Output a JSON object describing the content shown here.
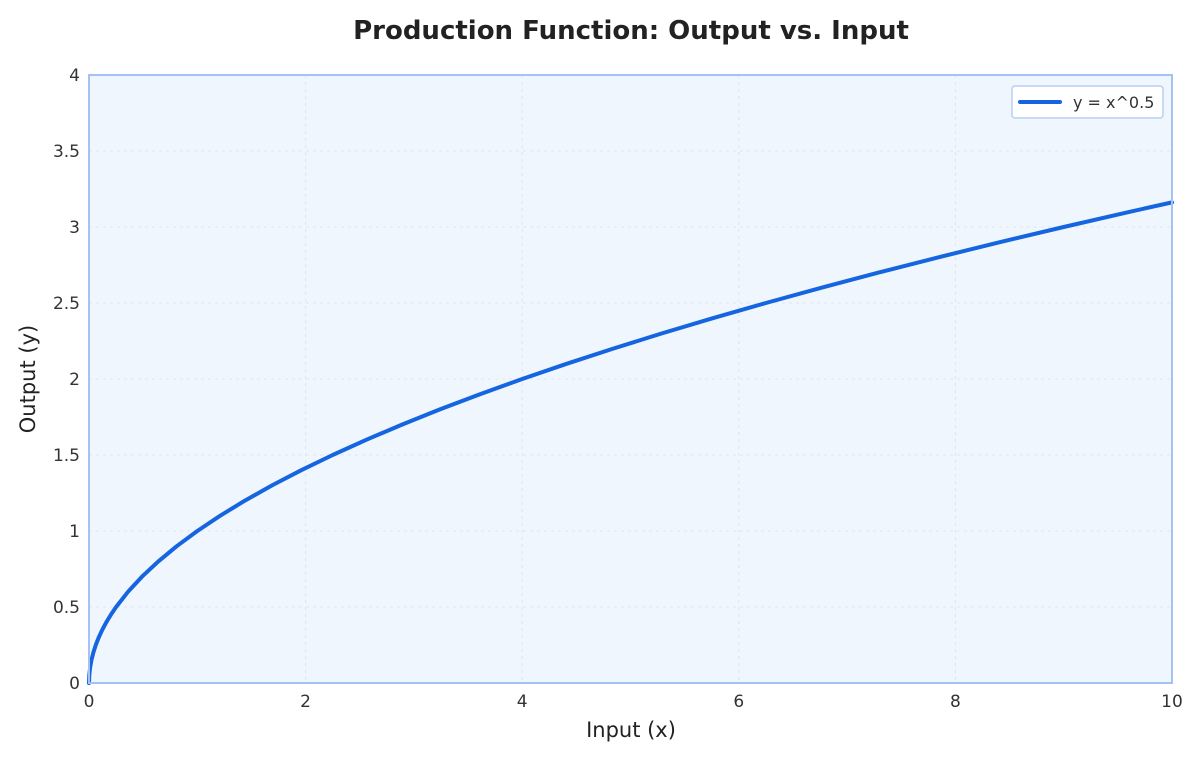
{
  "chart_data": {
    "type": "line",
    "title": "Production Function: Output vs. Input",
    "xlabel": "Input (x)",
    "ylabel": "Output (y)",
    "xlim": [
      0,
      10
    ],
    "ylim": [
      0,
      4
    ],
    "x_ticks": [
      0,
      2,
      4,
      6,
      8,
      10
    ],
    "x_tick_labels": [
      "0",
      "2",
      "4",
      "6",
      "8",
      "10"
    ],
    "y_ticks": [
      0,
      0.5,
      1,
      1.5,
      2,
      2.5,
      3,
      3.5,
      4
    ],
    "y_tick_labels": [
      "0",
      "0.5",
      "1",
      "1.5",
      "2",
      "2.5",
      "3",
      "3.5",
      "4"
    ],
    "grid": true,
    "legend_position": "top-right",
    "series": [
      {
        "name": "y = x^0.5",
        "color": "#1565e0",
        "x": [
          0,
          0.0025,
          0.01,
          0.0225,
          0.04,
          0.0625,
          0.09,
          0.1225,
          0.16,
          0.2025,
          0.25,
          0.36,
          0.49,
          0.64,
          0.81,
          1,
          1.21,
          1.44,
          1.69,
          1.96,
          2.25,
          2.56,
          2.89,
          3.24,
          3.61,
          4,
          4.41,
          4.84,
          5.29,
          5.76,
          6.25,
          6.76,
          7.29,
          7.84,
          8.41,
          9,
          9.61,
          10
        ],
        "y": [
          0,
          0.05,
          0.1,
          0.15,
          0.2,
          0.25,
          0.3,
          0.35,
          0.4,
          0.45,
          0.5,
          0.6,
          0.7,
          0.8,
          0.9,
          1,
          1.1,
          1.2,
          1.3,
          1.4,
          1.5,
          1.6,
          1.7,
          1.8,
          1.9,
          2,
          2.1,
          2.2,
          2.3,
          2.4,
          2.5,
          2.6,
          2.7,
          2.8,
          2.9,
          3,
          3.1,
          3.162
        ]
      }
    ],
    "colors": {
      "plot_background": "#f0f6fd",
      "plot_border": "#a4c2f4",
      "grid": "#dde5ef",
      "legend_border": "#b9d0f2"
    }
  }
}
